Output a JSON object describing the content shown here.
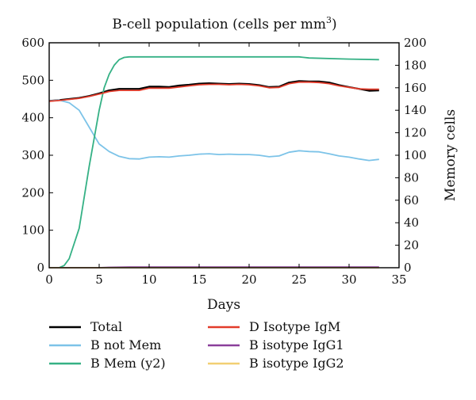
{
  "chart_data": {
    "type": "line",
    "title": "B-cell population (cells per mm",
    "title_sup": "3",
    "title_close": ")",
    "xlabel": "Days",
    "ylabel_right": "Memory cells",
    "xlim": [
      0,
      35
    ],
    "ylim_left": [
      0,
      600
    ],
    "ylim_right": [
      0,
      200
    ],
    "xticks": [
      "0",
      "5",
      "10",
      "15",
      "20",
      "25",
      "30",
      "35"
    ],
    "yticks_left": [
      "0",
      "100",
      "200",
      "300",
      "400",
      "500",
      "600"
    ],
    "yticks_right": [
      "0",
      "20",
      "40",
      "60",
      "80",
      "100",
      "120",
      "140",
      "160",
      "180",
      "200"
    ],
    "grid": false,
    "legend_position": "bottom",
    "series": [
      {
        "name": "Total",
        "axis": "left",
        "color": "#000000",
        "x": [
          0,
          1,
          2,
          3,
          4,
          5,
          6,
          7,
          8,
          9,
          10,
          11,
          12,
          13,
          14,
          15,
          16,
          17,
          18,
          19,
          20,
          21,
          22,
          23,
          24,
          25,
          26,
          27,
          28,
          29,
          30,
          31,
          32,
          33
        ],
        "y": [
          445,
          447,
          450,
          453,
          458,
          465,
          473,
          477,
          477,
          477,
          483,
          483,
          482,
          486,
          488,
          491,
          492,
          491,
          490,
          491,
          490,
          487,
          482,
          483,
          494,
          498,
          497,
          497,
          494,
          487,
          482,
          477,
          472,
          473
        ]
      },
      {
        "name": "B not Mem",
        "axis": "left",
        "color": "#7cc3e8",
        "x": [
          0,
          1,
          2,
          3,
          4,
          5,
          6,
          7,
          8,
          9,
          10,
          11,
          12,
          13,
          14,
          15,
          16,
          17,
          18,
          19,
          20,
          21,
          22,
          23,
          24,
          25,
          26,
          27,
          28,
          29,
          30,
          31,
          32,
          33
        ],
        "y": [
          445,
          447,
          440,
          420,
          375,
          330,
          310,
          297,
          291,
          290,
          295,
          296,
          295,
          298,
          300,
          303,
          304,
          302,
          303,
          302,
          302,
          300,
          296,
          298,
          308,
          312,
          310,
          309,
          304,
          298,
          295,
          290,
          286,
          289
        ]
      },
      {
        "name": "B Mem (y2)",
        "axis": "right",
        "color": "#35b185",
        "x": [
          0,
          1,
          1.5,
          2,
          3,
          4,
          5,
          5.5,
          6,
          6.5,
          7,
          7.5,
          8,
          9,
          10,
          15,
          20,
          25,
          26,
          30,
          33
        ],
        "y": [
          0,
          0,
          2,
          8,
          35,
          90,
          140,
          160,
          172,
          180,
          185,
          187,
          187.5,
          187.5,
          187.5,
          187.5,
          187.5,
          187.5,
          186.5,
          185.5,
          185
        ]
      },
      {
        "name": "D Isotype IgM",
        "axis": "left",
        "color": "#e23b2a",
        "x": [
          0,
          1,
          2,
          3,
          4,
          5,
          6,
          7,
          8,
          9,
          10,
          11,
          12,
          13,
          14,
          15,
          16,
          17,
          18,
          19,
          20,
          21,
          22,
          23,
          24,
          25,
          26,
          27,
          28,
          29,
          30,
          31,
          32,
          33
        ],
        "y": [
          444,
          446,
          449,
          452,
          457,
          463,
          470,
          473,
          473,
          473,
          479,
          479,
          479,
          482,
          485,
          488,
          489,
          489,
          488,
          489,
          488,
          485,
          480,
          481,
          491,
          495,
          495,
          494,
          491,
          485,
          481,
          477,
          476,
          476
        ]
      },
      {
        "name": "B isotype IgG1",
        "axis": "left",
        "color": "#8a3f9a",
        "x": [
          0,
          5,
          6,
          8,
          33
        ],
        "y": [
          0,
          0,
          1,
          2,
          2
        ]
      },
      {
        "name": "B isotype IgG2",
        "axis": "left",
        "color": "#f2cf73",
        "x": [
          0,
          33
        ],
        "y": [
          0,
          0
        ]
      }
    ]
  }
}
